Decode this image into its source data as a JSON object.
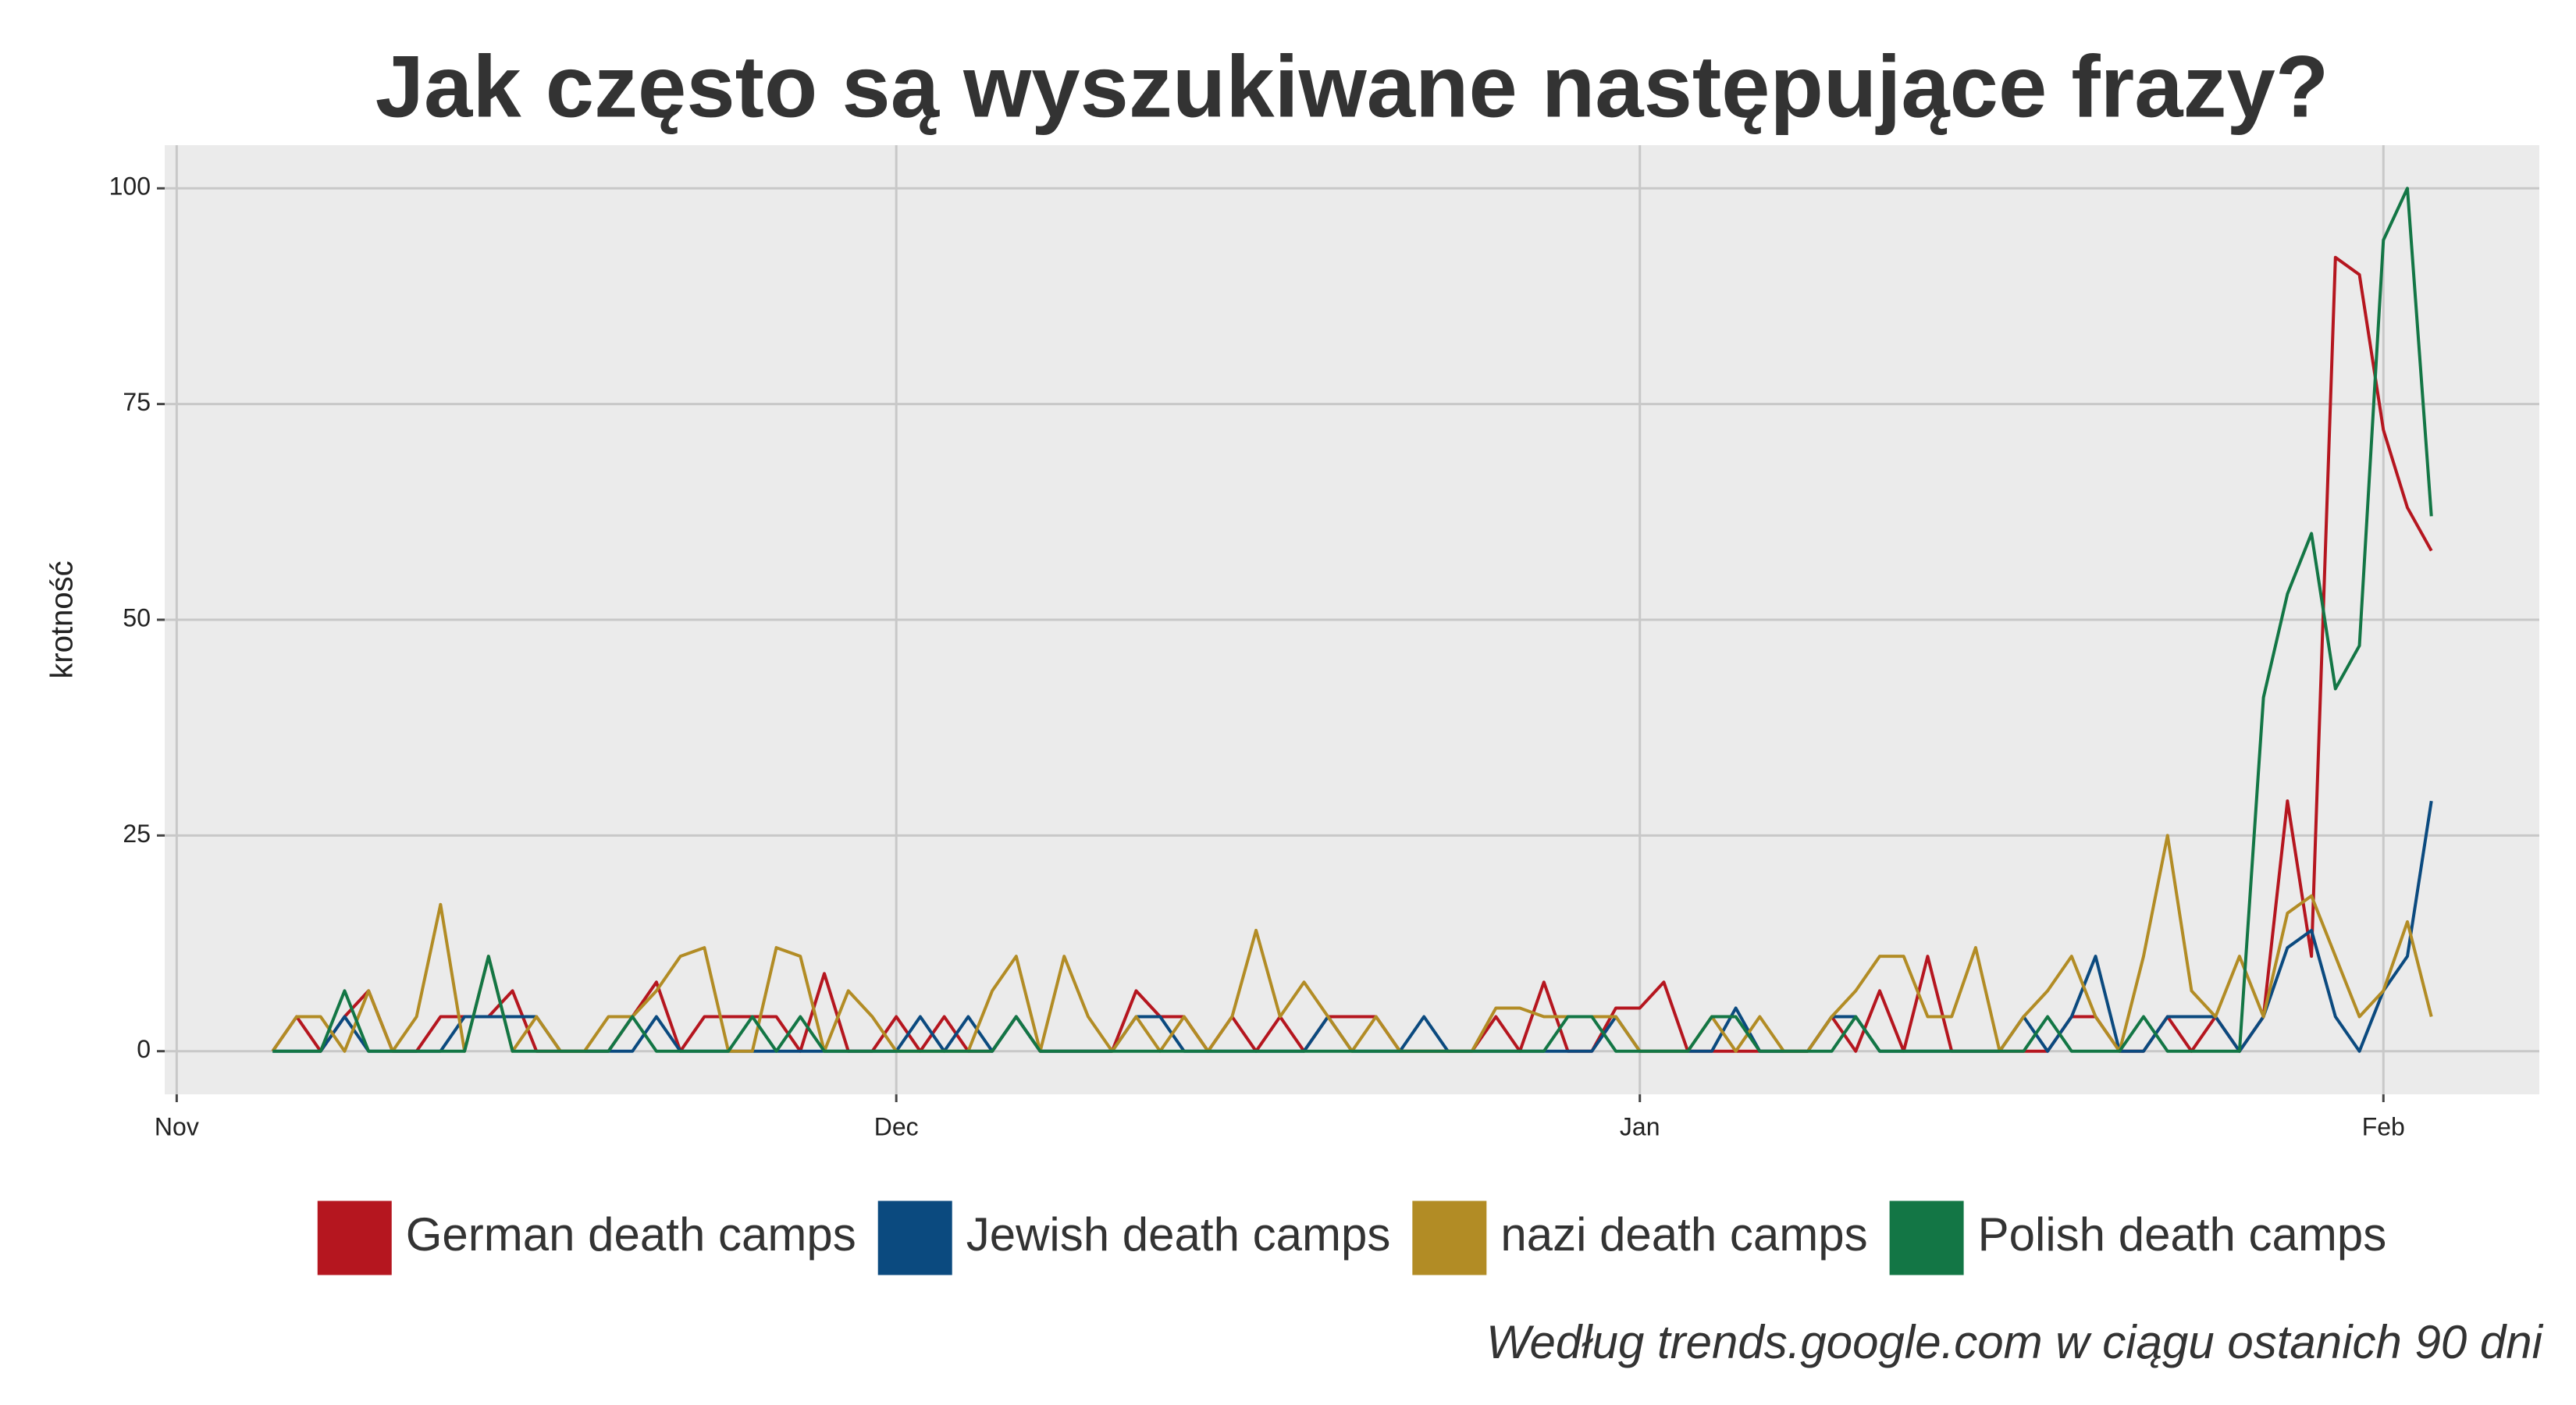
{
  "chart_data": {
    "type": "line",
    "title": "Jak często są wyszukiwane następujące frazy?",
    "ylabel": "krotność",
    "caption": "Według trends.google.com w ciągu ostanich 90 dni",
    "x": [
      4,
      5,
      6,
      7,
      8,
      9,
      10,
      11,
      12,
      13,
      14,
      15,
      16,
      17,
      18,
      19,
      20,
      21,
      22,
      23,
      24,
      25,
      26,
      27,
      28,
      29,
      30,
      31,
      32,
      33,
      34,
      35,
      36,
      37,
      38,
      39,
      40,
      41,
      42,
      43,
      44,
      45,
      46,
      47,
      48,
      49,
      50,
      51,
      52,
      53,
      54,
      55,
      56,
      57,
      58,
      59,
      60,
      61,
      62,
      63,
      64,
      65,
      66,
      67,
      68,
      69,
      70,
      71,
      72,
      73,
      74,
      75,
      76,
      77,
      78,
      79,
      80,
      81,
      82,
      83,
      84,
      85,
      86,
      87,
      88,
      89,
      90,
      91,
      92,
      93,
      94
    ],
    "xlim": [
      -0.5,
      98.5
    ],
    "xticks": [
      {
        "value": 0,
        "label": "Nov"
      },
      {
        "value": 30,
        "label": "Dec"
      },
      {
        "value": 61,
        "label": "Jan"
      },
      {
        "value": 92,
        "label": "Feb"
      }
    ],
    "ylim": [
      -5,
      105
    ],
    "yticks": [
      0,
      25,
      50,
      75,
      100
    ],
    "grid": true,
    "series": [
      {
        "name": "German death camps",
        "color": "#b5161f",
        "values": [
          0,
          4,
          0,
          4,
          7,
          0,
          0,
          4,
          4,
          4,
          7,
          0,
          0,
          0,
          0,
          4,
          8,
          0,
          4,
          4,
          4,
          4,
          0,
          9,
          0,
          0,
          4,
          0,
          4,
          0,
          0,
          4,
          0,
          0,
          0,
          0,
          7,
          4,
          4,
          0,
          4,
          0,
          4,
          0,
          4,
          4,
          4,
          0,
          0,
          0,
          0,
          4,
          0,
          8,
          0,
          0,
          5,
          5,
          8,
          0,
          0,
          0,
          0,
          0,
          0,
          4,
          0,
          7,
          0,
          11,
          0,
          0,
          0,
          0,
          0,
          4,
          4,
          0,
          0,
          4,
          0,
          4,
          0,
          4,
          29,
          11,
          92,
          90,
          72,
          63,
          58
        ]
      },
      {
        "name": "Jewish death camps",
        "color": "#0b4a7f",
        "values": [
          0,
          0,
          0,
          4,
          0,
          0,
          0,
          0,
          4,
          4,
          4,
          4,
          0,
          0,
          0,
          0,
          4,
          0,
          0,
          0,
          0,
          0,
          0,
          0,
          0,
          0,
          0,
          4,
          0,
          4,
          0,
          4,
          0,
          0,
          0,
          0,
          4,
          4,
          0,
          0,
          0,
          0,
          0,
          0,
          4,
          0,
          0,
          0,
          4,
          0,
          0,
          0,
          0,
          0,
          0,
          0,
          4,
          0,
          0,
          0,
          0,
          5,
          0,
          0,
          0,
          4,
          4,
          0,
          0,
          0,
          0,
          0,
          0,
          4,
          0,
          4,
          11,
          0,
          0,
          4,
          4,
          4,
          0,
          4,
          12,
          14,
          4,
          0,
          7,
          11,
          29
        ]
      },
      {
        "name": "nazi death camps",
        "color": "#b28c25",
        "values": [
          0,
          4,
          4,
          0,
          7,
          0,
          4,
          17,
          0,
          11,
          0,
          4,
          0,
          0,
          4,
          4,
          7,
          11,
          12,
          0,
          0,
          12,
          11,
          0,
          7,
          4,
          0,
          0,
          0,
          0,
          7,
          11,
          0,
          11,
          4,
          0,
          4,
          0,
          4,
          0,
          4,
          14,
          4,
          8,
          4,
          0,
          4,
          0,
          0,
          0,
          0,
          5,
          5,
          4,
          4,
          4,
          4,
          0,
          0,
          0,
          4,
          0,
          4,
          0,
          0,
          4,
          7,
          11,
          11,
          4,
          4,
          12,
          0,
          4,
          7,
          11,
          4,
          0,
          11,
          25,
          7,
          4,
          11,
          4,
          16,
          18,
          11,
          4,
          7,
          15,
          4
        ]
      },
      {
        "name": "Polish death camps",
        "color": "#137645",
        "values": [
          0,
          0,
          0,
          7,
          0,
          0,
          0,
          0,
          0,
          11,
          0,
          0,
          0,
          0,
          0,
          4,
          0,
          0,
          0,
          0,
          4,
          0,
          4,
          0,
          0,
          0,
          0,
          0,
          0,
          0,
          0,
          4,
          0,
          0,
          0,
          0,
          0,
          0,
          0,
          0,
          0,
          0,
          0,
          0,
          0,
          0,
          0,
          0,
          0,
          0,
          0,
          0,
          0,
          0,
          4,
          4,
          0,
          0,
          0,
          0,
          4,
          4,
          0,
          0,
          0,
          0,
          4,
          0,
          0,
          0,
          0,
          0,
          0,
          0,
          4,
          0,
          0,
          0,
          4,
          0,
          0,
          0,
          0,
          41,
          53,
          60,
          42,
          47,
          94,
          100,
          62
        ]
      }
    ]
  }
}
